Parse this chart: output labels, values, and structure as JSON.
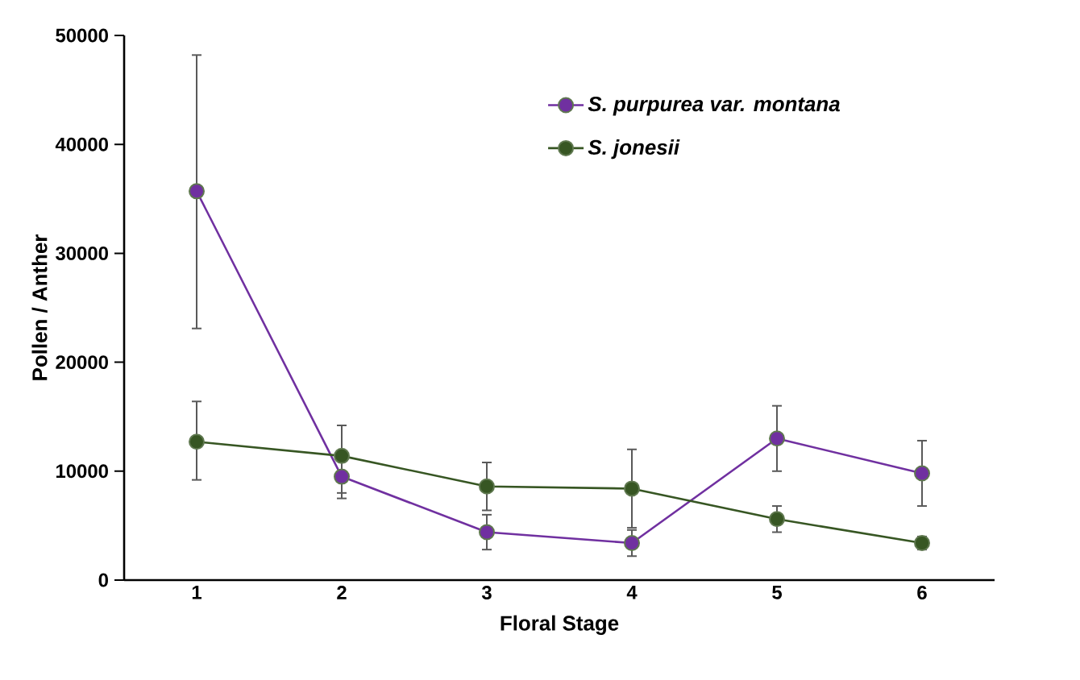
{
  "chart_data": {
    "type": "line",
    "xlabel": "Floral Stage",
    "ylabel": "Pollen / Anther",
    "categories": [
      "1",
      "2",
      "3",
      "4",
      "5",
      "6"
    ],
    "series": [
      {
        "name": "*S. purpurea var. montana*",
        "color": "#7030a0",
        "values": [
          35700,
          9500,
          4400,
          3400,
          13000,
          9800
        ],
        "errors": [
          [
            23100,
            48200
          ],
          1500,
          1600,
          1200,
          3000,
          3000
        ]
      },
      {
        "name": "*S. jonesii*",
        "color": "#375623",
        "values": [
          12700,
          11400,
          8600,
          8400,
          5600,
          3400
        ],
        "errors": [
          [
            9200,
            16400
          ],
          [
            7500,
            14200
          ],
          2200,
          3600,
          1200,
          600
        ]
      }
    ],
    "ylim": [
      0,
      50000
    ],
    "yticks": [
      0,
      10000,
      20000,
      30000,
      40000,
      50000
    ],
    "marker": "circle",
    "legend": "top right",
    "grid": false
  }
}
